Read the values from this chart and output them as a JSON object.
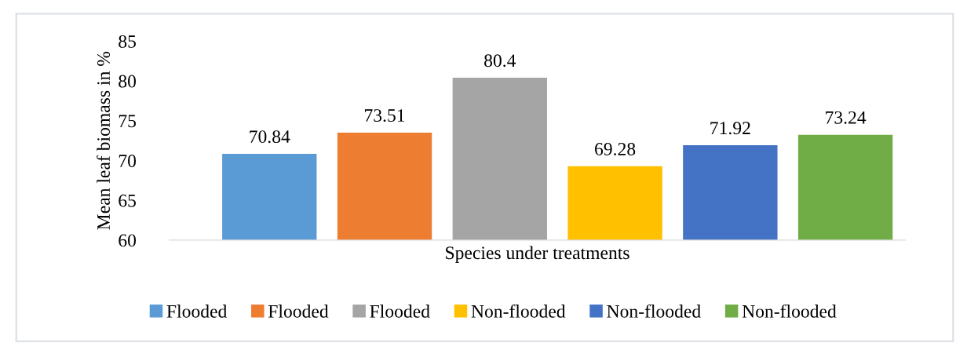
{
  "chart_data": {
    "type": "bar",
    "ylabel": "Mean leaf biomass in %",
    "xlabel": "Species under treatments",
    "categories": [
      null,
      null,
      null,
      null,
      null,
      null
    ],
    "series": [
      {
        "name": "Flooded",
        "color": "#5b9bd5",
        "values": [
          70.84,
          null,
          null,
          null,
          null,
          null
        ]
      },
      {
        "name": "Flooded",
        "color": "#ed7d31",
        "values": [
          null,
          73.51,
          null,
          null,
          null,
          null
        ]
      },
      {
        "name": "Flooded",
        "color": "#a5a5a5",
        "values": [
          null,
          null,
          80.4,
          null,
          null,
          null
        ]
      },
      {
        "name": "Non-flooded",
        "color": "#ffc000",
        "values": [
          null,
          null,
          null,
          69.28,
          null,
          null
        ]
      },
      {
        "name": "Non-flooded",
        "color": "#4472c4",
        "values": [
          null,
          null,
          null,
          null,
          71.92,
          null
        ]
      },
      {
        "name": "Non-flooded",
        "color": "#70ad47",
        "values": [
          null,
          null,
          null,
          null,
          null,
          73.24
        ]
      }
    ],
    "ylim": [
      60,
      85
    ],
    "yticks": [
      60,
      65,
      70,
      75,
      80,
      85
    ],
    "grid": false,
    "legend": "bottom",
    "data_labels": true
  }
}
